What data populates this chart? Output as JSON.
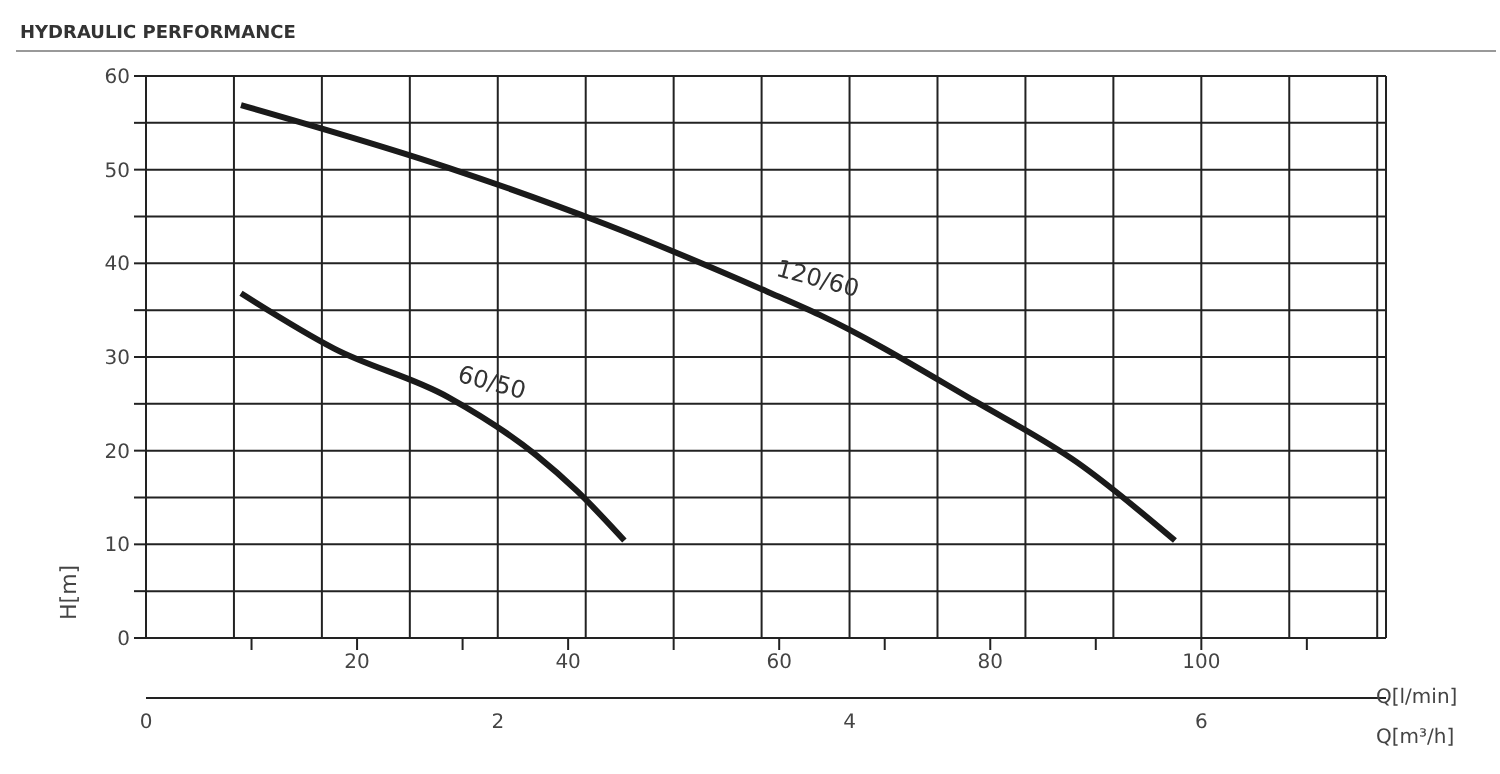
{
  "chart_data": {
    "type": "line",
    "title": "HYDRAULIC PERFORMANCE",
    "xlabel": "Q[m³/h]",
    "x2label": "Q[l/min]",
    "ylabel": "H[m]",
    "xlim": [
      0,
      7.05
    ],
    "xticks": [
      0,
      {
        "value": 0.5,
        "label": null
      },
      {
        "value": 1,
        "label": null
      },
      {
        "value": 1.5,
        "label": null
      },
      2,
      {
        "value": 2.5,
        "label": null
      },
      {
        "value": 3,
        "label": null
      },
      {
        "value": 3.5,
        "label": null
      },
      4,
      {
        "value": 4.5,
        "label": null
      },
      {
        "value": 5,
        "label": null
      },
      {
        "value": 5.5,
        "label": null
      },
      6,
      {
        "value": 6.5,
        "label": null
      },
      {
        "value": 7,
        "label": null
      }
    ],
    "x2lim": [
      0,
      117.5
    ],
    "x2ticks": [
      {
        "value": 10,
        "label": null
      },
      20,
      {
        "value": 30,
        "label": null
      },
      40,
      {
        "value": 50,
        "label": null
      },
      60,
      {
        "value": 70,
        "label": null
      },
      80,
      {
        "value": 90,
        "label": null
      },
      100,
      {
        "value": 110,
        "label": null
      }
    ],
    "ylim": [
      0,
      60
    ],
    "yticks": [
      0,
      {
        "value": 5,
        "label": null
      },
      10,
      {
        "value": 15,
        "label": null
      },
      20,
      {
        "value": 25,
        "label": null
      },
      30,
      {
        "value": 35,
        "label": null
      },
      40,
      {
        "value": 45,
        "label": null
      },
      50,
      {
        "value": 55,
        "label": null
      },
      60
    ],
    "grid": true,
    "legend": false,
    "marker": "none",
    "line_style": "solid",
    "series": [
      {
        "name": "120/60",
        "color": "#1a1a1a",
        "x": [
          0.54,
          1.72,
          2.61,
          3.53,
          3.83,
          4.72,
          5.29,
          5.85
        ],
        "values": [
          56.9,
          50.2,
          44.2,
          37,
          34.5,
          25.2,
          18.8,
          10.4
        ]
      },
      {
        "name": "60/50",
        "color": "#1a1a1a",
        "x": [
          0.54,
          1.07,
          1.72,
          2.22,
          2.45,
          2.72
        ],
        "values": [
          36.8,
          30.9,
          25.7,
          19.5,
          15.7,
          10.4
        ]
      }
    ]
  }
}
